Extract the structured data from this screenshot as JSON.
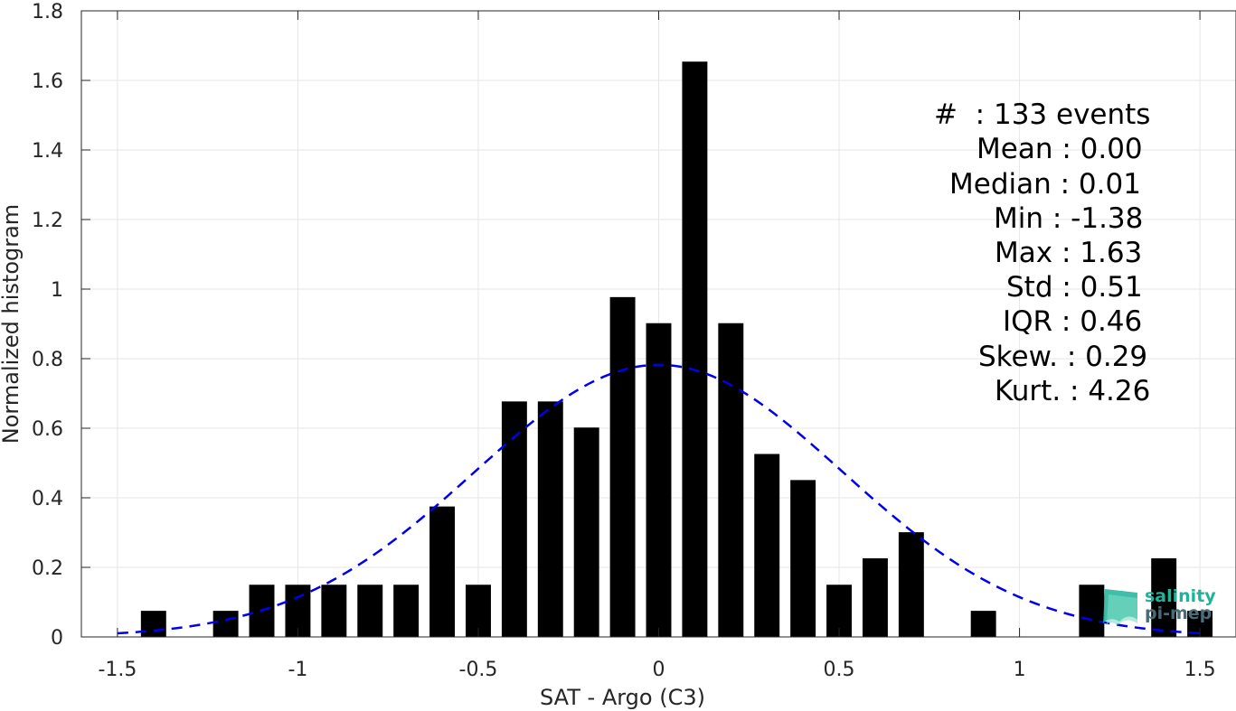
{
  "chart_data": {
    "type": "bar",
    "title": "",
    "xlabel": "SAT - Argo (C3)",
    "ylabel": "Normalized histogram",
    "xlim": [
      -1.6,
      1.6
    ],
    "ylim": [
      0,
      1.8
    ],
    "x_ticks": [
      "-1.5",
      "-1",
      "-0.5",
      "0",
      "0.5",
      "1",
      "1.5"
    ],
    "x_tick_values": [
      -1.5,
      -1,
      -0.5,
      0,
      0.5,
      1,
      1.5
    ],
    "y_ticks": [
      "0",
      "0.2",
      "0.4",
      "0.6",
      "0.8",
      "1",
      "1.2",
      "1.4",
      "1.6",
      "1.8"
    ],
    "y_tick_values": [
      0,
      0.2,
      0.4,
      0.6,
      0.8,
      1,
      1.2,
      1.4,
      1.6,
      1.8
    ],
    "grid": true,
    "bar_width": 0.07,
    "bars": [
      {
        "x": -1.4,
        "y": 0.075
      },
      {
        "x": -1.2,
        "y": 0.075
      },
      {
        "x": -1.1,
        "y": 0.15
      },
      {
        "x": -1.0,
        "y": 0.15
      },
      {
        "x": -0.9,
        "y": 0.15
      },
      {
        "x": -0.8,
        "y": 0.15
      },
      {
        "x": -0.7,
        "y": 0.15
      },
      {
        "x": -0.6,
        "y": 0.375
      },
      {
        "x": -0.5,
        "y": 0.15
      },
      {
        "x": -0.4,
        "y": 0.677
      },
      {
        "x": -0.3,
        "y": 0.677
      },
      {
        "x": -0.2,
        "y": 0.602
      },
      {
        "x": -0.1,
        "y": 0.977
      },
      {
        "x": 0.0,
        "y": 0.902
      },
      {
        "x": 0.1,
        "y": 1.654
      },
      {
        "x": 0.2,
        "y": 0.902
      },
      {
        "x": 0.3,
        "y": 0.526
      },
      {
        "x": 0.4,
        "y": 0.451
      },
      {
        "x": 0.5,
        "y": 0.15
      },
      {
        "x": 0.6,
        "y": 0.226
      },
      {
        "x": 0.7,
        "y": 0.301
      },
      {
        "x": 0.9,
        "y": 0.075
      },
      {
        "x": 1.2,
        "y": 0.15
      },
      {
        "x": 1.4,
        "y": 0.226
      },
      {
        "x": 1.5,
        "y": 0.075
      }
    ],
    "bar_color": "#000000",
    "fit_curve": {
      "style": "dashed",
      "color": "#0000ee",
      "mean": 0.0,
      "std": 0.51,
      "x_range": [
        -1.5,
        1.5
      ]
    },
    "annotations": [
      "#  : 133 events",
      "Mean : 0.00",
      "Median : 0.01",
      "Min : -1.38",
      "Max : 1.63",
      "Std : 0.51",
      "IQR : 0.46",
      "Skew. : 0.29",
      "Kurt. : 4.26"
    ]
  },
  "logo": {
    "line1": "salinity",
    "line2": "pi-mep",
    "color": "#1fb39a"
  }
}
